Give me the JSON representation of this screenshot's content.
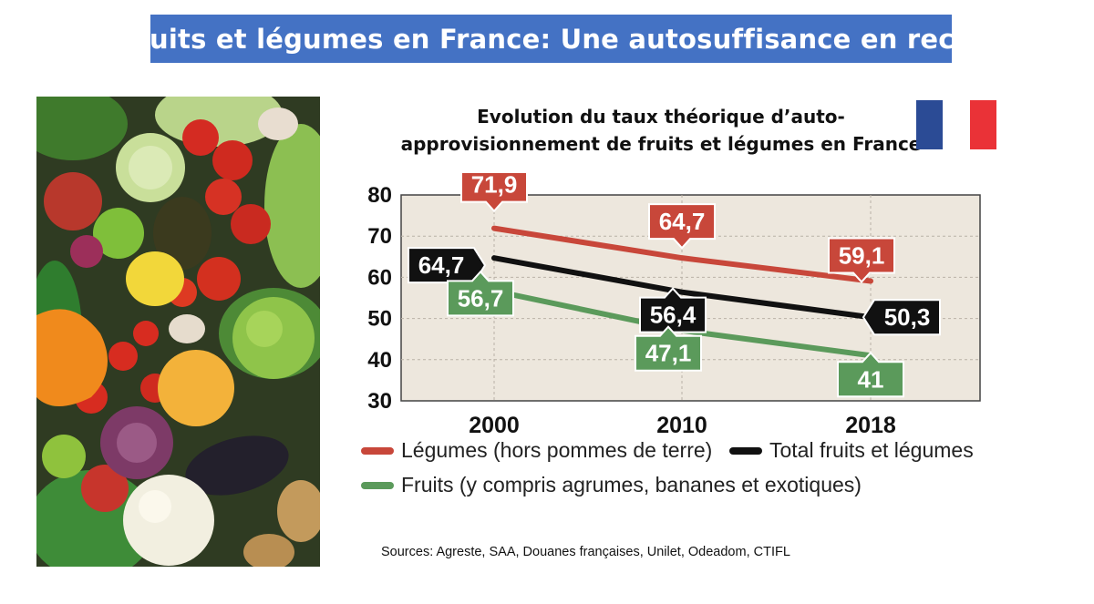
{
  "page": {
    "banner_title": "Fruits et légumes en France: Une autosuffisance en recul",
    "chart_title_line1": "Evolution du taux théorique d’auto-",
    "chart_title_line2": "approvisionnement de fruits et légumes en France",
    "source": "Sources: Agreste, SAA, Douanes françaises, Unilet, Odeadom, CTIFL",
    "flag_colors": [
      "#2b4b95",
      "#ffffff",
      "#ea3237"
    ],
    "photo_subject": "assorted fresh fruits and vegetables"
  },
  "chart_data": {
    "type": "line",
    "title": "Evolution du taux théorique d’auto-approvisionnement de fruits et légumes en France",
    "x": [
      2000,
      2010,
      2018
    ],
    "xticks": [
      "2000",
      "2010",
      "2018"
    ],
    "yticks": [
      "80",
      "70",
      "60",
      "50",
      "40",
      "30"
    ],
    "ylim": [
      30,
      80
    ],
    "grid": true,
    "legend_position": "bottom",
    "series": [
      {
        "name": "Légumes (hors pommes de terre)",
        "color": "#c8473a",
        "values": [
          71.9,
          64.7,
          59.1
        ],
        "labels": [
          "71,9",
          "64,7",
          "59,1"
        ]
      },
      {
        "name": "Total fruits et légumes",
        "color": "#111111",
        "values": [
          64.7,
          56.4,
          50.3
        ],
        "labels": [
          "64,7",
          "56,4",
          "50,3"
        ]
      },
      {
        "name": "Fruits (y compris agrumes, bananes et exotiques)",
        "color": "#5b9a5b",
        "values": [
          56.7,
          47.1,
          41
        ],
        "labels": [
          "56,7",
          "47,1",
          "41"
        ]
      }
    ]
  }
}
